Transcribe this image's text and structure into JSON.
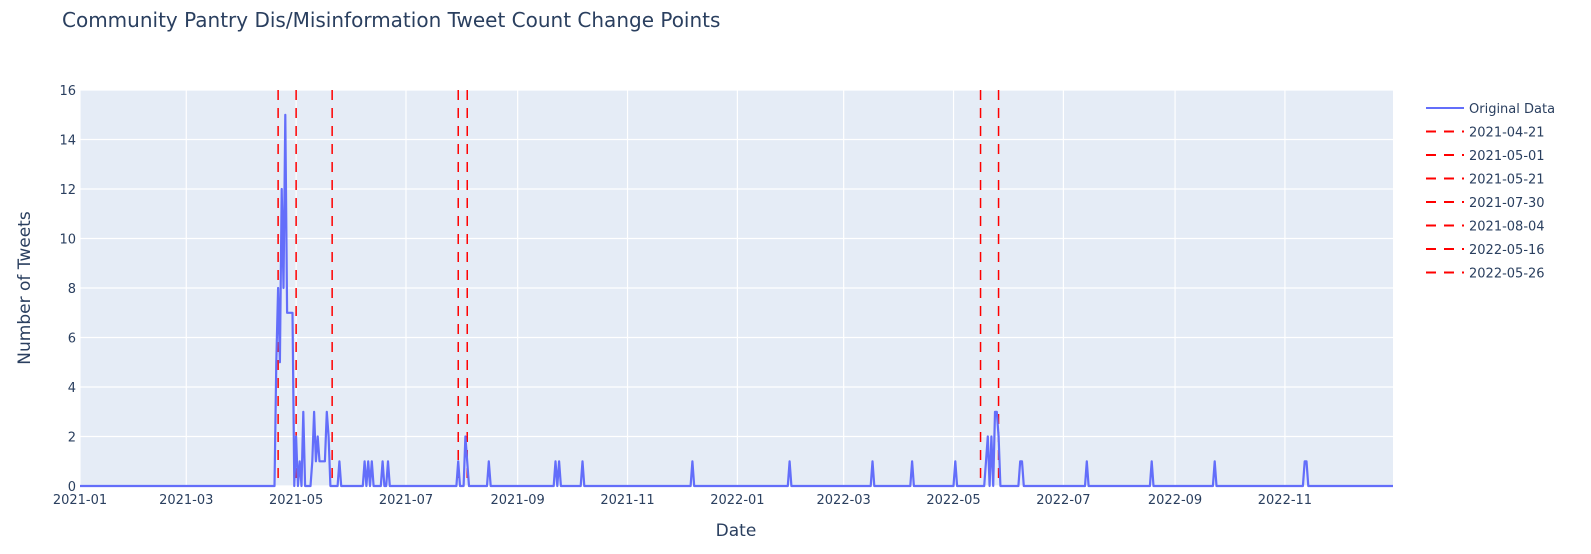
{
  "chart_data": {
    "type": "line",
    "title": "Community Pantry Dis/Misinformation Tweet Count Change Points",
    "xlabel": "Date",
    "ylabel": "Number of Tweets",
    "xlim": [
      "2021-01-01",
      "2022-12-31"
    ],
    "ylim": [
      0,
      16
    ],
    "x_ticks": [
      "2021-01",
      "2021-03",
      "2021-05",
      "2021-07",
      "2021-09",
      "2021-11",
      "2022-01",
      "2022-03",
      "2022-05",
      "2022-07",
      "2022-09",
      "2022-11"
    ],
    "y_ticks": [
      "0",
      "2",
      "4",
      "6",
      "8",
      "10",
      "12",
      "14",
      "16"
    ],
    "grid": true,
    "legend_position": "right",
    "colors": {
      "background": "#e5ecf6",
      "grid": "#ffffff",
      "series": "#636efa",
      "changepoint": "#ff0000",
      "text": "#2a3f5f"
    },
    "series": [
      {
        "name": "Original Data",
        "points": [
          [
            "2021-01-01",
            0
          ],
          [
            "2021-04-19",
            0
          ],
          [
            "2021-04-20",
            5
          ],
          [
            "2021-04-21",
            8
          ],
          [
            "2021-04-22",
            5
          ],
          [
            "2021-04-23",
            12
          ],
          [
            "2021-04-24",
            8
          ],
          [
            "2021-04-25",
            15
          ],
          [
            "2021-04-26",
            7
          ],
          [
            "2021-04-28",
            7
          ],
          [
            "2021-04-29",
            7
          ],
          [
            "2021-04-30",
            0
          ],
          [
            "2021-05-01",
            2
          ],
          [
            "2021-05-02",
            0
          ],
          [
            "2021-05-03",
            1
          ],
          [
            "2021-05-04",
            0
          ],
          [
            "2021-05-05",
            3
          ],
          [
            "2021-05-06",
            0
          ],
          [
            "2021-05-09",
            0
          ],
          [
            "2021-05-10",
            1
          ],
          [
            "2021-05-11",
            3
          ],
          [
            "2021-05-12",
            1
          ],
          [
            "2021-05-13",
            2
          ],
          [
            "2021-05-14",
            1
          ],
          [
            "2021-05-17",
            1
          ],
          [
            "2021-05-18",
            3
          ],
          [
            "2021-05-19",
            2
          ],
          [
            "2021-05-20",
            0
          ],
          [
            "2021-05-24",
            0
          ],
          [
            "2021-05-25",
            1
          ],
          [
            "2021-05-26",
            0
          ],
          [
            "2021-06-07",
            0
          ],
          [
            "2021-06-08",
            1
          ],
          [
            "2021-06-09",
            0
          ],
          [
            "2021-06-10",
            1
          ],
          [
            "2021-06-11",
            0
          ],
          [
            "2021-06-12",
            1
          ],
          [
            "2021-06-13",
            0
          ],
          [
            "2021-06-17",
            0
          ],
          [
            "2021-06-18",
            1
          ],
          [
            "2021-06-19",
            0
          ],
          [
            "2021-06-20",
            0
          ],
          [
            "2021-06-21",
            1
          ],
          [
            "2021-06-22",
            0
          ],
          [
            "2021-07-29",
            0
          ],
          [
            "2021-07-30",
            1
          ],
          [
            "2021-07-31",
            0
          ],
          [
            "2021-08-02",
            0
          ],
          [
            "2021-08-03",
            2
          ],
          [
            "2021-08-04",
            1
          ],
          [
            "2021-08-05",
            0
          ],
          [
            "2021-08-15",
            0
          ],
          [
            "2021-08-16",
            1
          ],
          [
            "2021-08-17",
            0
          ],
          [
            "2021-09-21",
            0
          ],
          [
            "2021-09-22",
            1
          ],
          [
            "2021-09-23",
            0
          ],
          [
            "2021-09-24",
            1
          ],
          [
            "2021-09-25",
            0
          ],
          [
            "2021-10-06",
            0
          ],
          [
            "2021-10-07",
            1
          ],
          [
            "2021-10-08",
            0
          ],
          [
            "2021-12-06",
            0
          ],
          [
            "2021-12-07",
            1
          ],
          [
            "2021-12-08",
            0
          ],
          [
            "2022-01-29",
            0
          ],
          [
            "2022-01-30",
            1
          ],
          [
            "2022-01-31",
            0
          ],
          [
            "2022-03-16",
            0
          ],
          [
            "2022-03-17",
            1
          ],
          [
            "2022-03-18",
            0
          ],
          [
            "2022-04-07",
            0
          ],
          [
            "2022-04-08",
            1
          ],
          [
            "2022-04-09",
            0
          ],
          [
            "2022-05-01",
            0
          ],
          [
            "2022-05-02",
            1
          ],
          [
            "2022-05-03",
            0
          ],
          [
            "2022-05-18",
            0
          ],
          [
            "2022-05-19",
            1
          ],
          [
            "2022-05-20",
            2
          ],
          [
            "2022-05-21",
            0
          ],
          [
            "2022-05-22",
            2
          ],
          [
            "2022-05-23",
            0
          ],
          [
            "2022-05-24",
            3
          ],
          [
            "2022-05-25",
            3
          ],
          [
            "2022-05-26",
            2
          ],
          [
            "2022-05-27",
            0
          ],
          [
            "2022-06-06",
            0
          ],
          [
            "2022-06-07",
            1
          ],
          [
            "2022-06-08",
            1
          ],
          [
            "2022-06-09",
            0
          ],
          [
            "2022-07-13",
            0
          ],
          [
            "2022-07-14",
            1
          ],
          [
            "2022-07-15",
            0
          ],
          [
            "2022-08-18",
            0
          ],
          [
            "2022-08-19",
            1
          ],
          [
            "2022-08-20",
            0
          ],
          [
            "2022-09-22",
            0
          ],
          [
            "2022-09-23",
            1
          ],
          [
            "2022-09-24",
            0
          ],
          [
            "2022-11-11",
            0
          ],
          [
            "2022-11-12",
            1
          ],
          [
            "2022-11-13",
            1
          ],
          [
            "2022-11-14",
            0
          ],
          [
            "2022-12-31",
            0
          ]
        ]
      }
    ],
    "change_points": [
      "2021-04-21",
      "2021-05-01",
      "2021-05-21",
      "2021-07-30",
      "2021-08-04",
      "2022-05-16",
      "2022-05-26"
    ]
  }
}
